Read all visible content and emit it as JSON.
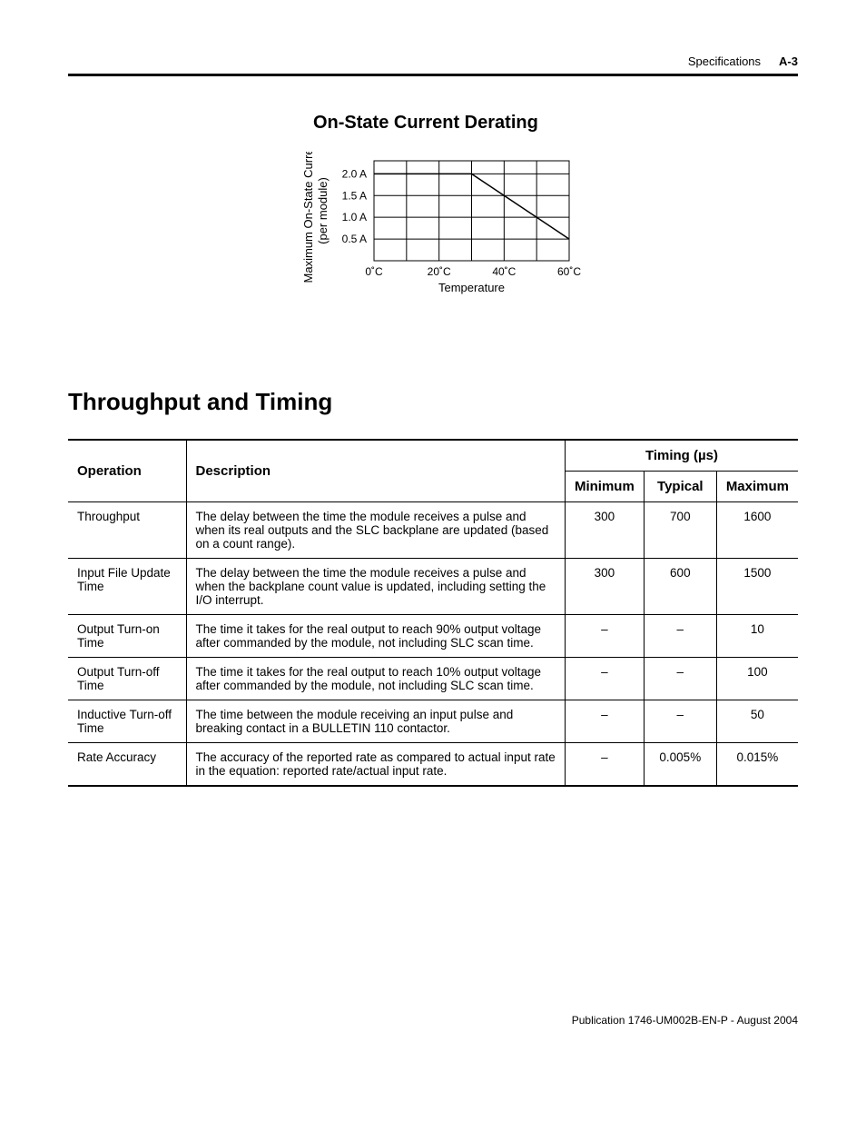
{
  "header": {
    "section": "Specifications",
    "page": "A-3"
  },
  "chart_section": {
    "heading": "On-State Current Derating",
    "chart": {
      "type": "line",
      "y_axis_label_line1": "Maximum On-State Current",
      "y_axis_label_line2": "(per module)",
      "x_axis_label": "Temperature",
      "x_ticks": [
        "0˚C",
        "20˚C",
        "40˚C",
        "60˚C"
      ],
      "y_ticks": [
        "0.5 A",
        "1.0 A",
        "1.5 A",
        "2.0 A"
      ],
      "series": [
        {
          "points": [
            [
              0,
              2.0
            ],
            [
              30,
              2.0
            ],
            [
              60,
              0.5
            ]
          ],
          "color": "#000000",
          "width": 1.5
        }
      ],
      "x_range": [
        0,
        60
      ],
      "y_range": [
        0,
        2.3
      ],
      "grid_color": "#000000",
      "background_color": "#ffffff"
    }
  },
  "table_section": {
    "heading": "Throughput and Timing",
    "col_headers": {
      "operation": "Operation",
      "description": "Description",
      "timing_group": "Timing (µs)",
      "min": "Minimum",
      "typ": "Typical",
      "max": "Maximum"
    },
    "rows": [
      {
        "op": "Throughput",
        "desc": "The delay between the time the module receives a pulse and when its real outputs and the SLC backplane are updated (based on a count range).",
        "min": "300",
        "typ": "700",
        "max": "1600"
      },
      {
        "op": "Input File Update Time",
        "desc": "The delay between the time the module receives a pulse and when the backplane count value is updated, including setting the I/O interrupt.",
        "min": "300",
        "typ": "600",
        "max": "1500"
      },
      {
        "op": "Output Turn-on Time",
        "desc": "The time it takes for the real output to reach 90% output voltage after commanded by the module, not including SLC scan time.",
        "min": "–",
        "typ": "–",
        "max": "10"
      },
      {
        "op": "Output Turn-off Time",
        "desc": "The time it takes for the real output to reach 10% output voltage after commanded by the module, not including SLC scan time.",
        "min": "–",
        "typ": "–",
        "max": "100"
      },
      {
        "op": "Inductive Turn-off Time",
        "desc": "The time between the module receiving an input pulse and breaking contact in a BULLETIN 110 contactor.",
        "min": "–",
        "typ": "–",
        "max": "50"
      },
      {
        "op": "Rate Accuracy",
        "desc": "The accuracy of the reported rate as compared to actual input rate in the equation: reported rate/actual input rate.",
        "min": "–",
        "typ": "0.005%",
        "max": "0.015%"
      }
    ]
  },
  "footer": {
    "text": "Publication 1746-UM002B-EN-P - August 2004"
  }
}
